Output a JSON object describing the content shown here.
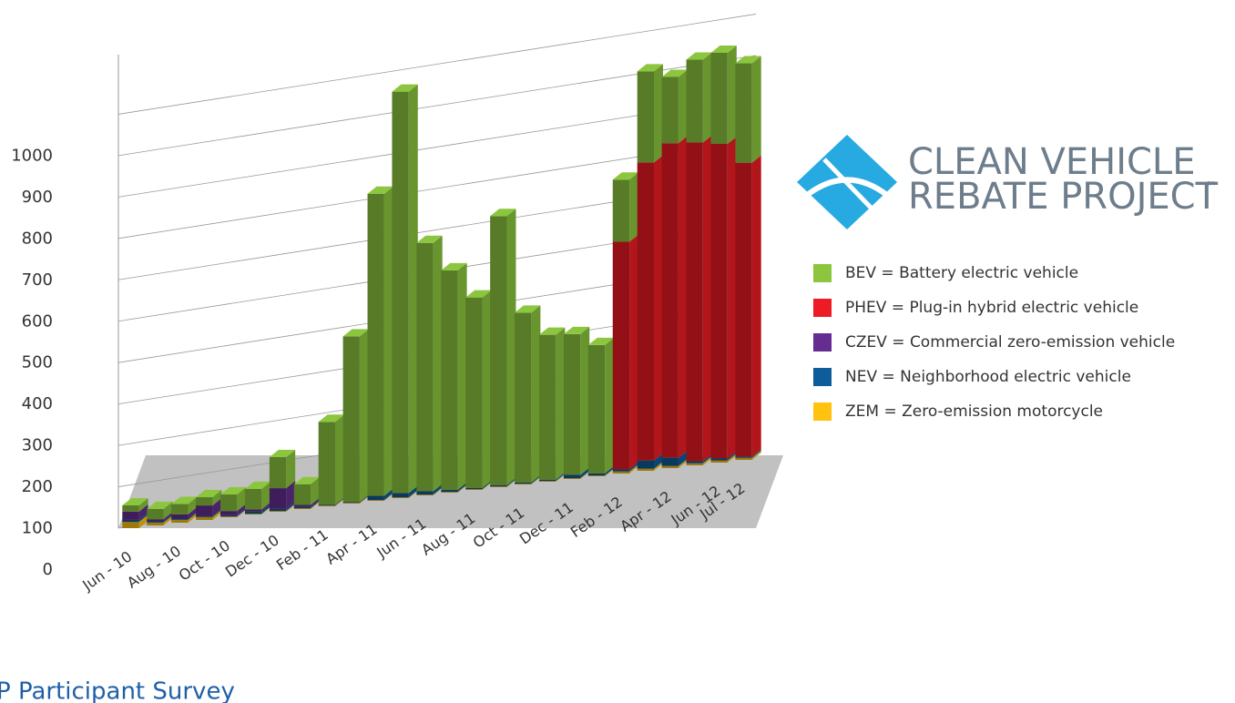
{
  "chart_data": {
    "type": "bar3d",
    "categories": [
      "Jun - 10",
      null,
      "Aug - 10",
      null,
      "Oct - 10",
      null,
      "Dec - 10",
      null,
      "Feb - 11",
      null,
      "Apr - 11",
      null,
      "Jun - 11",
      null,
      "Aug - 11",
      null,
      "Oct - 11",
      null,
      "Dec - 11",
      null,
      "Feb - 12",
      null,
      "Apr - 12",
      null,
      "Jun - 12",
      "Jul - 12"
    ],
    "series": [
      {
        "name": "BEV = Battery electric vehicle",
        "color": "#8cc63f",
        "values": [
          15,
          25,
          25,
          20,
          40,
          50,
          75,
          50,
          200,
          400,
          730,
          970,
          600,
          530,
          460,
          650,
          410,
          350,
          340,
          310,
          150,
          220,
          160,
          200,
          220,
          240
        ]
      },
      {
        "name": "PHEV = Plug-in hybrid electric vehicle",
        "color": "#ed1c24",
        "values": [
          0,
          0,
          0,
          0,
          0,
          0,
          0,
          0,
          0,
          0,
          0,
          0,
          0,
          0,
          0,
          0,
          0,
          0,
          0,
          0,
          550,
          720,
          760,
          770,
          760,
          710
        ]
      },
      {
        "name": "CZEV = Commercial zero-emission vehicle",
        "color": "#662d91",
        "values": [
          20,
          5,
          10,
          25,
          10,
          5,
          50,
          5,
          0,
          0,
          0,
          0,
          0,
          0,
          0,
          0,
          0,
          0,
          0,
          0,
          0,
          0,
          0,
          0,
          0,
          0
        ]
      },
      {
        "name": "NEV = Neighborhood electric vehicle",
        "color": "#0f5c9a",
        "values": [
          5,
          3,
          3,
          3,
          3,
          5,
          5,
          3,
          2,
          2,
          10,
          10,
          8,
          5,
          3,
          3,
          3,
          3,
          8,
          5,
          5,
          20,
          20,
          5,
          5,
          3
        ]
      },
      {
        "name": "ZEM = Zero-emission motorcycle",
        "color": "#ffc20e",
        "values": [
          15,
          7,
          7,
          7,
          2,
          2,
          2,
          2,
          2,
          2,
          2,
          2,
          2,
          2,
          2,
          2,
          2,
          2,
          2,
          2,
          5,
          5,
          5,
          5,
          5,
          5
        ]
      }
    ],
    "ylim": [
      0,
      1100
    ],
    "yticks": [
      0,
      100,
      200,
      300,
      400,
      500,
      600,
      700,
      800,
      900,
      1000
    ],
    "grid": true,
    "logo": {
      "line1": "CLEAN VEHICLE",
      "line2": "REBATE PROJECT",
      "mark": "SM"
    },
    "footer": "P Participant Survey"
  }
}
